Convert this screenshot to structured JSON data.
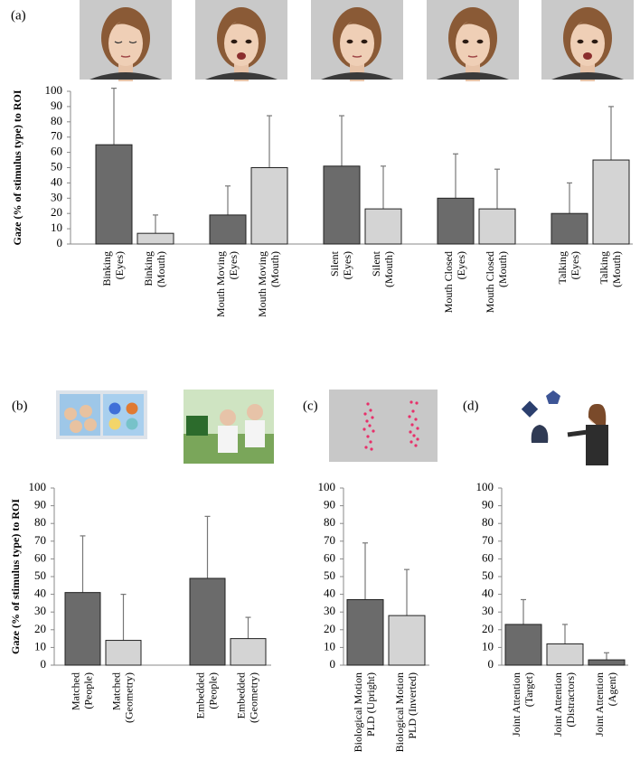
{
  "chart_data": [
    {
      "type": "bar",
      "panel_label": "(a)",
      "ylabel": "Gaze (% of stimulus type) to ROI",
      "categories": [
        [
          "Binking",
          "(Eyes)"
        ],
        [
          "Binking",
          "(Mouth)"
        ],
        [
          "Mouth Moving",
          "(Eyes)"
        ],
        [
          "Mouth Moving",
          "(Mouth)"
        ],
        [
          "Silent",
          "(Eyes)"
        ],
        [
          "Silent",
          "(Mouth)"
        ],
        [
          "Mouth Closed",
          "(Eyes)"
        ],
        [
          "Mouth Closed",
          "(Mouth)"
        ],
        [
          "Talking",
          "(Eyes)"
        ],
        [
          "Talking",
          "(Mouth)"
        ]
      ],
      "values": [
        65,
        7,
        19,
        50,
        51,
        23,
        30,
        23,
        20,
        55
      ],
      "errors": [
        37,
        12,
        19,
        34,
        33,
        28,
        29,
        26,
        20,
        35
      ],
      "colors": [
        "#6b6b6b",
        "#d4d4d4",
        "#6b6b6b",
        "#d4d4d4",
        "#6b6b6b",
        "#d4d4d4",
        "#6b6b6b",
        "#d4d4d4",
        "#6b6b6b",
        "#d4d4d4"
      ],
      "ylim": [
        0,
        100
      ],
      "yticks": [
        0,
        10,
        20,
        30,
        40,
        50,
        60,
        70,
        80,
        90,
        100
      ]
    },
    {
      "type": "bar",
      "panel_label": "(b)",
      "ylabel": "Gaze (% of stimulus type) to ROI",
      "categories": [
        [
          "Matched",
          "(People)"
        ],
        [
          "Matched",
          "(Geometry)"
        ],
        [
          "Embedded",
          "(People)"
        ],
        [
          "Embedded",
          "(Geometry)"
        ]
      ],
      "values": [
        41,
        14,
        49,
        15
      ],
      "errors": [
        32,
        26,
        35,
        12
      ],
      "colors": [
        "#6b6b6b",
        "#d4d4d4",
        "#6b6b6b",
        "#d4d4d4"
      ],
      "ylim": [
        0,
        100
      ],
      "yticks": [
        0,
        10,
        20,
        30,
        40,
        50,
        60,
        70,
        80,
        90,
        100
      ]
    },
    {
      "type": "bar",
      "panel_label": "(c)",
      "categories": [
        [
          "Biological Motion",
          "PLD (Upright)"
        ],
        [
          "Biological Motion",
          "PLD (Inverted)"
        ]
      ],
      "values": [
        37,
        28
      ],
      "errors": [
        32,
        26
      ],
      "colors": [
        "#6b6b6b",
        "#d4d4d4"
      ],
      "ylim": [
        0,
        100
      ],
      "yticks": [
        0,
        10,
        20,
        30,
        40,
        50,
        60,
        70,
        80,
        90,
        100
      ]
    },
    {
      "type": "bar",
      "panel_label": "(d)",
      "categories": [
        [
          "Joint Attention",
          "(Target)"
        ],
        [
          "Joint Attention",
          "(Distractors)"
        ],
        [
          "Joint Attention",
          "(Agent)"
        ]
      ],
      "values": [
        23,
        12,
        3
      ],
      "errors": [
        14,
        11,
        4
      ],
      "colors": [
        "#6b6b6b",
        "#d4d4d4",
        "#6b6b6b"
      ],
      "ylim": [
        0,
        100
      ],
      "yticks": [
        0,
        10,
        20,
        30,
        40,
        50,
        60,
        70,
        80,
        90,
        100
      ]
    }
  ]
}
